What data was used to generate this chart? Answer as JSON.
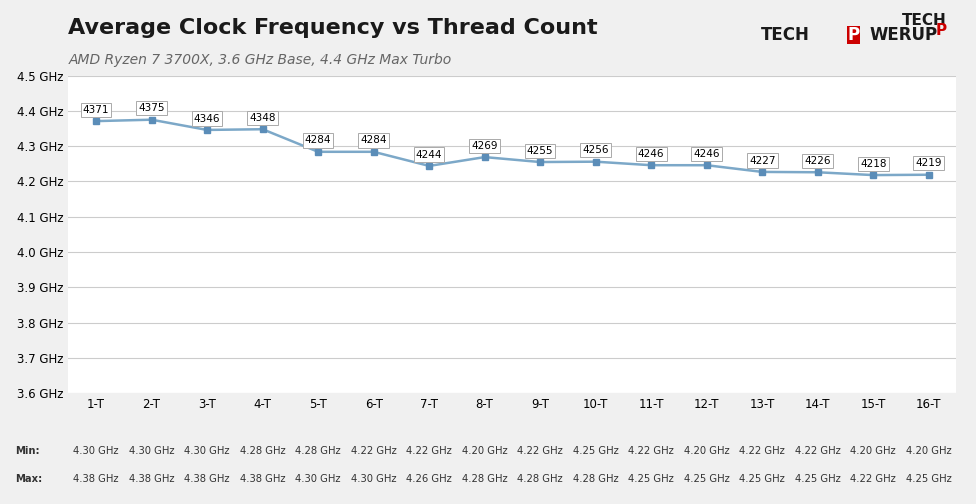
{
  "title": "Average Clock Frequency vs Thread Count",
  "subtitle": "AMD Ryzen 7 3700X, 3.6 GHz Base, 4.4 GHz Max Turbo",
  "x_labels": [
    "1-T",
    "2-T",
    "3-T",
    "4-T",
    "5-T",
    "6-T",
    "7-T",
    "8-T",
    "9-T",
    "10-T",
    "11-T",
    "12-T",
    "13-T",
    "14-T",
    "15-T",
    "16-T"
  ],
  "y_values": [
    4371,
    4375,
    4346,
    4348,
    4284,
    4284,
    4244,
    4269,
    4255,
    4256,
    4246,
    4246,
    4227,
    4226,
    4218,
    4219
  ],
  "min_vals": [
    "4.30 GHz",
    "4.30 GHz",
    "4.30 GHz",
    "4.28 GHz",
    "4.28 GHz",
    "4.22 GHz",
    "4.22 GHz",
    "4.20 GHz",
    "4.22 GHz",
    "4.25 GHz",
    "4.22 GHz",
    "4.20 GHz",
    "4.22 GHz",
    "4.22 GHz",
    "4.20 GHz",
    "4.20 GHz"
  ],
  "max_vals": [
    "4.38 GHz",
    "4.38 GHz",
    "4.38 GHz",
    "4.38 GHz",
    "4.30 GHz",
    "4.30 GHz",
    "4.26 GHz",
    "4.28 GHz",
    "4.28 GHz",
    "4.28 GHz",
    "4.25 GHz",
    "4.25 GHz",
    "4.25 GHz",
    "4.25 GHz",
    "4.22 GHz",
    "4.25 GHz"
  ],
  "ylim_min": 3600,
  "ylim_max": 4500,
  "ytick_step": 100,
  "line_color": "#7CA8C8",
  "marker_color": "#5B8DB8",
  "bg_color": "#F0F0F0",
  "plot_bg_color": "#FFFFFF",
  "grid_color": "#CCCCCC",
  "label_box_color": "#FFFFFF",
  "label_box_edge": "#AAAAAA",
  "text_color_title": "#1A1A1A",
  "text_color_subtitle": "#666666",
  "annotation_font_size": 7.5,
  "table_font_size": 7.2
}
